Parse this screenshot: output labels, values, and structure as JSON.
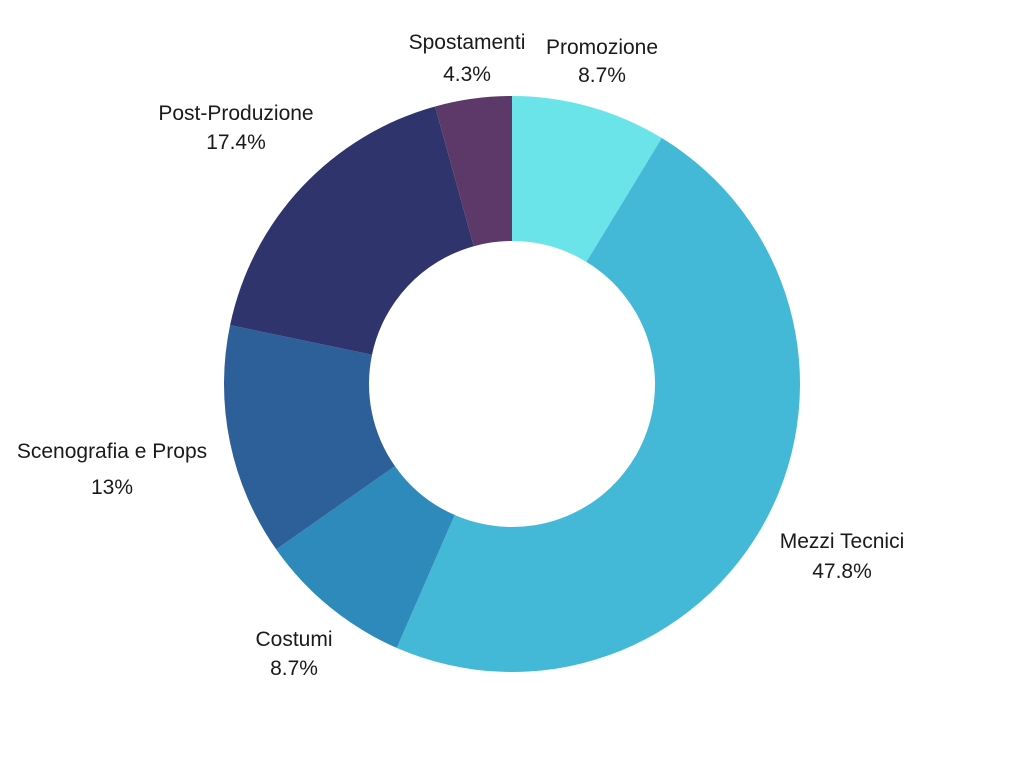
{
  "chart_data": {
    "type": "pie",
    "donut": true,
    "title": "",
    "slices": [
      {
        "label": "Promozione",
        "value": 8.7,
        "value_label": "8.7%",
        "color": "#6ae4e9"
      },
      {
        "label": "Mezzi Tecnici",
        "value": 47.8,
        "value_label": "47.8%",
        "color": "#43b8d7"
      },
      {
        "label": "Costumi",
        "value": 8.7,
        "value_label": "8.7%",
        "color": "#2e8aba"
      },
      {
        "label": "Scenografia e Props",
        "value": 13,
        "value_label": "13%",
        "color": "#2d5f99"
      },
      {
        "label": "Post-Produzione",
        "value": 17.4,
        "value_label": "17.4%",
        "color": "#30346d"
      },
      {
        "label": "Spostamenti",
        "value": 4.3,
        "value_label": "4.3%",
        "color": "#5c3968"
      }
    ],
    "start_angle": "12 o'clock",
    "direction": "clockwise",
    "legend": "none"
  }
}
